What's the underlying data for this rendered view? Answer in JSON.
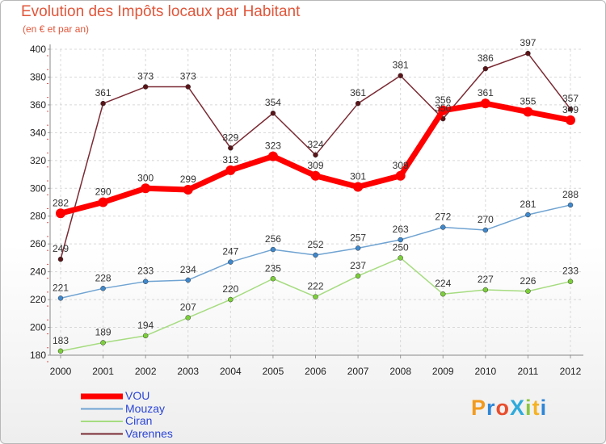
{
  "chart_data": {
    "type": "line",
    "title": "Evolution des Impôts locaux par Habitant",
    "subtitle": "(en € et par an)",
    "categories": [
      "2000",
      "2001",
      "2002",
      "2003",
      "2004",
      "2005",
      "2006",
      "2007",
      "2008",
      "2009",
      "2010",
      "2011",
      "2012"
    ],
    "ylim": [
      180,
      400
    ],
    "yticks": [
      180,
      200,
      220,
      240,
      260,
      280,
      300,
      320,
      340,
      360,
      380,
      400
    ],
    "series": [
      {
        "name": "Varennes",
        "color": "#7a2a33",
        "marker": "#5a1418",
        "values": [
          249,
          361,
          373,
          373,
          329,
          354,
          324,
          361,
          381,
          350,
          386,
          397,
          357
        ]
      },
      {
        "name": "Ciran",
        "color": "#a6dc80",
        "marker": "#7ccf3a",
        "values": [
          183,
          189,
          194,
          207,
          220,
          235,
          222,
          237,
          250,
          224,
          227,
          226,
          233
        ]
      },
      {
        "name": "Mouzay",
        "color": "#6fa3d2",
        "marker": "#3f88cc",
        "values": [
          221,
          228,
          233,
          234,
          247,
          256,
          252,
          257,
          263,
          272,
          270,
          281,
          288
        ]
      },
      {
        "name": "VOU",
        "color": "#ff0000",
        "marker": "#ff0000",
        "values": [
          282,
          290,
          300,
          299,
          313,
          323,
          309,
          301,
          309,
          356,
          361,
          355,
          349
        ]
      }
    ],
    "legend": [
      "VOU",
      "Mouzay",
      "Ciran",
      "Varennes"
    ]
  },
  "logo": {
    "text": "ProXiti",
    "letters": [
      {
        "ch": "P",
        "color": "#f29a1e"
      },
      {
        "ch": "r",
        "color": "#2e86d6"
      },
      {
        "ch": "o",
        "color": "#e84d2c"
      },
      {
        "ch": "X",
        "color": "#2eaadc"
      },
      {
        "ch": "i",
        "color": "#8cc63f"
      },
      {
        "ch": "t",
        "color": "#f5b324"
      },
      {
        "ch": "i",
        "color": "#2e86d6"
      }
    ]
  }
}
